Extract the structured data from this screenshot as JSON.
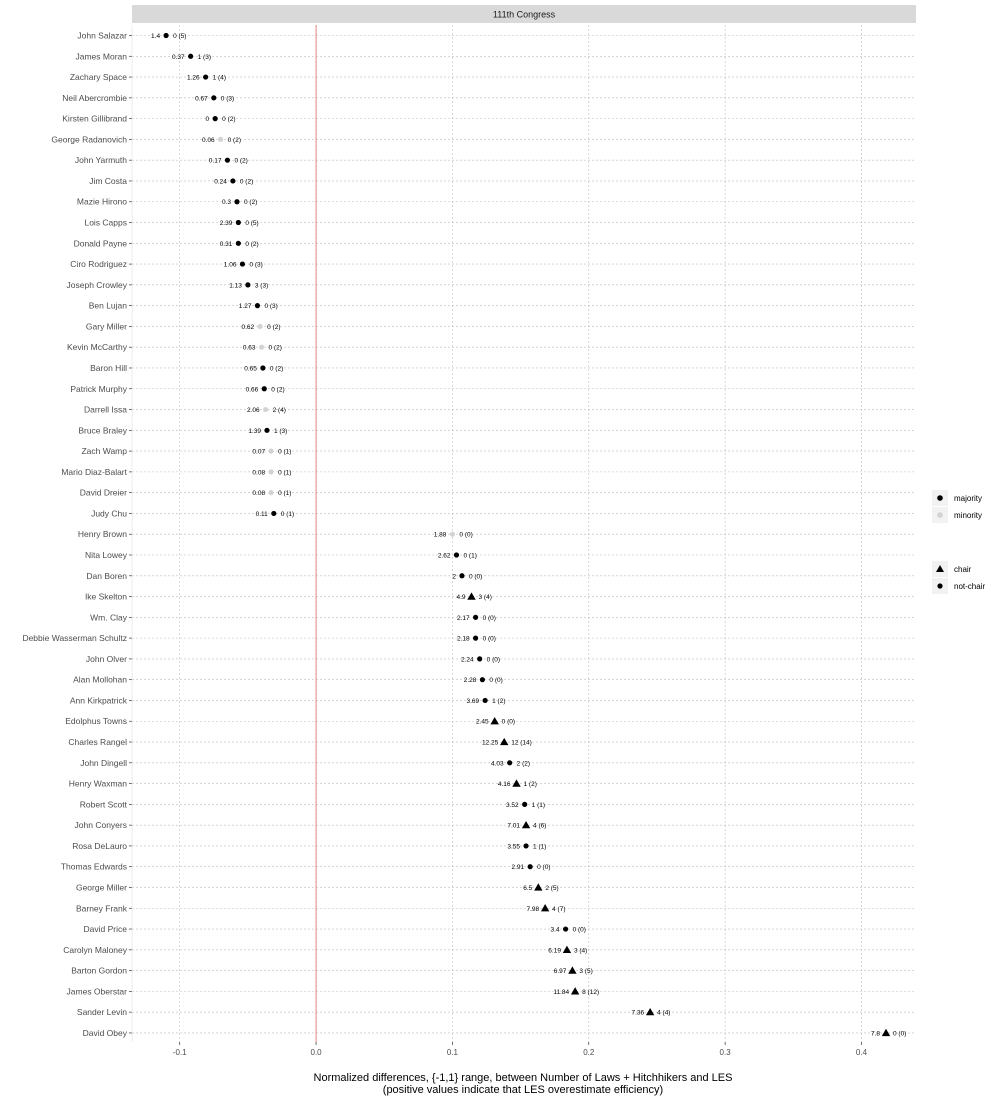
{
  "chart_data": {
    "type": "scatter",
    "facet_title": "111th Congress",
    "xlabel": "Normalized differences, {-1,1} range, between Number of Laws + Hitchhikers and LES",
    "xlabel_note": "(positive values indicate that LES overestimate efficiency)",
    "xlim": [
      -0.135,
      0.44
    ],
    "x_ticks": [
      -0.1,
      0.0,
      0.1,
      0.2,
      0.3,
      0.4
    ],
    "x_tick_labels": [
      "-0.1",
      "0.0",
      "0.1",
      "0.2",
      "0.3",
      "0.4"
    ],
    "reference_line_x": 0,
    "grid": true,
    "legend_position": "right",
    "legends": {
      "party": [
        {
          "key": "majority",
          "label": "majority",
          "color": "#000000"
        },
        {
          "key": "minority",
          "label": "minority",
          "color": "#d3d3d3"
        }
      ],
      "chair": [
        {
          "key": "chair",
          "label": "chair",
          "shape": "triangle"
        },
        {
          "key": "not-chair",
          "label": "not-chair",
          "shape": "circle"
        }
      ]
    },
    "points": [
      {
        "name": "John Salazar",
        "x": -0.11,
        "les": "1.4",
        "laws": "0 (5)",
        "party": "majority",
        "chair": false
      },
      {
        "name": "James Moran",
        "x": -0.092,
        "les": "0.37",
        "laws": "1 (3)",
        "party": "majority",
        "chair": false
      },
      {
        "name": "Zachary Space",
        "x": -0.081,
        "les": "1.26",
        "laws": "1 (4)",
        "party": "majority",
        "chair": false
      },
      {
        "name": "Neil Abercrombie",
        "x": -0.075,
        "les": "0.67",
        "laws": "0 (3)",
        "party": "majority",
        "chair": false
      },
      {
        "name": "Kirsten Gillibrand",
        "x": -0.074,
        "les": "0",
        "laws": "0 (2)",
        "party": "majority",
        "chair": false
      },
      {
        "name": "George Radanovich",
        "x": -0.07,
        "les": "0.06",
        "laws": "0 (2)",
        "party": "minority",
        "chair": false
      },
      {
        "name": "John Yarmuth",
        "x": -0.065,
        "les": "0.17",
        "laws": "0 (2)",
        "party": "majority",
        "chair": false
      },
      {
        "name": "Jim Costa",
        "x": -0.061,
        "les": "0.24",
        "laws": "0 (2)",
        "party": "majority",
        "chair": false
      },
      {
        "name": "Mazie Hirono",
        "x": -0.058,
        "les": "0.3",
        "laws": "0 (2)",
        "party": "majority",
        "chair": false
      },
      {
        "name": "Lois Capps",
        "x": -0.057,
        "les": "2.39",
        "laws": "0 (5)",
        "party": "majority",
        "chair": false
      },
      {
        "name": "Donald Payne",
        "x": -0.057,
        "les": "0.31",
        "laws": "0 (2)",
        "party": "majority",
        "chair": false
      },
      {
        "name": "Ciro Rodriguez",
        "x": -0.054,
        "les": "1.06",
        "laws": "0 (3)",
        "party": "majority",
        "chair": false
      },
      {
        "name": "Joseph Crowley",
        "x": -0.05,
        "les": "1.13",
        "laws": "3 (3)",
        "party": "majority",
        "chair": false
      },
      {
        "name": "Ben Lujan",
        "x": -0.043,
        "les": "1.27",
        "laws": "0 (3)",
        "party": "majority",
        "chair": false
      },
      {
        "name": "Gary Miller",
        "x": -0.041,
        "les": "0.62",
        "laws": "0 (2)",
        "party": "minority",
        "chair": false
      },
      {
        "name": "Kevin McCarthy",
        "x": -0.04,
        "les": "0.63",
        "laws": "0 (2)",
        "party": "minority",
        "chair": false
      },
      {
        "name": "Baron Hill",
        "x": -0.039,
        "les": "0.65",
        "laws": "0 (2)",
        "party": "majority",
        "chair": false
      },
      {
        "name": "Patrick Murphy",
        "x": -0.038,
        "les": "0.66",
        "laws": "0 (2)",
        "party": "majority",
        "chair": false
      },
      {
        "name": "Darrell Issa",
        "x": -0.037,
        "les": "2.06",
        "laws": "2 (4)",
        "party": "minority",
        "chair": false
      },
      {
        "name": "Bruce Braley",
        "x": -0.036,
        "les": "1.39",
        "laws": "1 (3)",
        "party": "majority",
        "chair": false
      },
      {
        "name": "Zach Wamp",
        "x": -0.033,
        "les": "0.07",
        "laws": "0 (1)",
        "party": "minority",
        "chair": false
      },
      {
        "name": "Mario Diaz-Balart",
        "x": -0.033,
        "les": "0.08",
        "laws": "0 (1)",
        "party": "minority",
        "chair": false
      },
      {
        "name": "David Dreier",
        "x": -0.033,
        "les": "0.08",
        "laws": "0 (1)",
        "party": "minority",
        "chair": false
      },
      {
        "name": "Judy Chu",
        "x": -0.031,
        "les": "0.11",
        "laws": "0 (1)",
        "party": "majority",
        "chair": false
      },
      {
        "name": "Henry Brown",
        "x": 0.1,
        "les": "1.88",
        "laws": "0 (0)",
        "party": "minority",
        "chair": false
      },
      {
        "name": "Nita Lowey",
        "x": 0.103,
        "les": "2.62",
        "laws": "0 (1)",
        "party": "majority",
        "chair": false
      },
      {
        "name": "Dan Boren",
        "x": 0.107,
        "les": "2",
        "laws": "0 (0)",
        "party": "majority",
        "chair": false
      },
      {
        "name": "Ike Skelton",
        "x": 0.114,
        "les": "4.9",
        "laws": "3 (4)",
        "party": "majority",
        "chair": true
      },
      {
        "name": "Wm. Clay",
        "x": 0.117,
        "les": "2.17",
        "laws": "0 (0)",
        "party": "majority",
        "chair": false
      },
      {
        "name": "Debbie Wasserman Schultz",
        "x": 0.117,
        "les": "2.18",
        "laws": "0 (0)",
        "party": "majority",
        "chair": false
      },
      {
        "name": "John Olver",
        "x": 0.12,
        "les": "2.24",
        "laws": "0 (0)",
        "party": "majority",
        "chair": false
      },
      {
        "name": "Alan Mollohan",
        "x": 0.122,
        "les": "2.28",
        "laws": "0 (0)",
        "party": "majority",
        "chair": false
      },
      {
        "name": "Ann Kirkpatrick",
        "x": 0.124,
        "les": "3.69",
        "laws": "1 (2)",
        "party": "majority",
        "chair": false
      },
      {
        "name": "Edolphus Towns",
        "x": 0.131,
        "les": "2.45",
        "laws": "0 (0)",
        "party": "majority",
        "chair": true
      },
      {
        "name": "Charles Rangel",
        "x": 0.138,
        "les": "12.25",
        "laws": "12 (14)",
        "party": "majority",
        "chair": true
      },
      {
        "name": "John Dingell",
        "x": 0.142,
        "les": "4.03",
        "laws": "2 (2)",
        "party": "majority",
        "chair": false
      },
      {
        "name": "Henry Waxman",
        "x": 0.147,
        "les": "4.16",
        "laws": "1 (2)",
        "party": "majority",
        "chair": true
      },
      {
        "name": "Robert Scott",
        "x": 0.153,
        "les": "3.52",
        "laws": "1 (1)",
        "party": "majority",
        "chair": false
      },
      {
        "name": "John Conyers",
        "x": 0.154,
        "les": "7.01",
        "laws": "4 (6)",
        "party": "majority",
        "chair": true
      },
      {
        "name": "Rosa DeLauro",
        "x": 0.154,
        "les": "3.55",
        "laws": "1 (1)",
        "party": "majority",
        "chair": false
      },
      {
        "name": "Thomas Edwards",
        "x": 0.157,
        "les": "2.91",
        "laws": "0 (0)",
        "party": "majority",
        "chair": false
      },
      {
        "name": "George Miller",
        "x": 0.163,
        "les": "6.5",
        "laws": "2 (5)",
        "party": "majority",
        "chair": true
      },
      {
        "name": "Barney Frank",
        "x": 0.168,
        "les": "7.98",
        "laws": "4 (7)",
        "party": "majority",
        "chair": true
      },
      {
        "name": "David Price",
        "x": 0.183,
        "les": "3.4",
        "laws": "0 (0)",
        "party": "majority",
        "chair": false
      },
      {
        "name": "Carolyn Maloney",
        "x": 0.184,
        "les": "6.19",
        "laws": "3 (4)",
        "party": "majority",
        "chair": true
      },
      {
        "name": "Barton Gordon",
        "x": 0.188,
        "les": "6.97",
        "laws": "3 (5)",
        "party": "majority",
        "chair": true
      },
      {
        "name": "James Oberstar",
        "x": 0.19,
        "les": "11.84",
        "laws": "8 (12)",
        "party": "majority",
        "chair": true
      },
      {
        "name": "Sander Levin",
        "x": 0.245,
        "les": "7.36",
        "laws": "4 (4)",
        "party": "majority",
        "chair": true
      },
      {
        "name": "David Obey",
        "x": 0.418,
        "les": "7.8",
        "laws": "0 (0)",
        "party": "majority",
        "chair": true
      }
    ]
  }
}
